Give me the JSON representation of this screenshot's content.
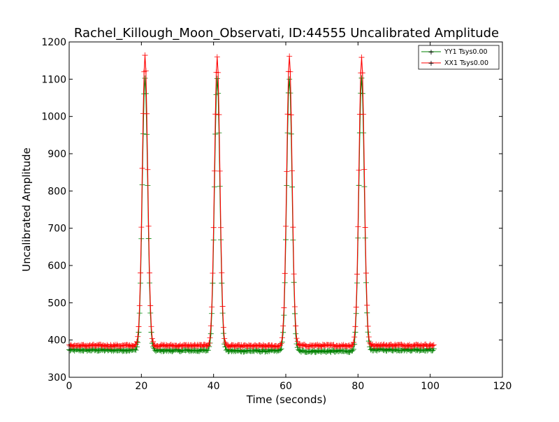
{
  "colors": {
    "background": "#ffffff",
    "axes": "#000000",
    "yy1": "#008000",
    "xx1": "#ff0000"
  },
  "chart_data": {
    "type": "line",
    "title": "Rachel_Killough_Moon_Observati, ID:44555 Uncalibrated Amplitude",
    "xlabel": "Time (seconds)",
    "ylabel": "Uncalibrated Amplitude",
    "xlim": [
      0,
      120
    ],
    "ylim": [
      300,
      1200
    ],
    "xticks": [
      0,
      20,
      40,
      60,
      80,
      100,
      120
    ],
    "yticks": [
      300,
      400,
      500,
      600,
      700,
      800,
      900,
      1000,
      1100,
      1200
    ],
    "grid": false,
    "legend_position": "top-right",
    "marker": "+",
    "x_sampling": {
      "start": 0,
      "end": 101,
      "step": 0.25
    },
    "baseline_segments": [
      {
        "x_start": 0,
        "x_end": 19,
        "xx1": 385,
        "yy1": 373
      },
      {
        "x_start": 23,
        "x_end": 39,
        "xx1": 385,
        "yy1": 372
      },
      {
        "x_start": 43,
        "x_end": 59,
        "xx1": 384,
        "yy1": 371
      },
      {
        "x_start": 63,
        "x_end": 79,
        "xx1": 385,
        "yy1": 370
      },
      {
        "x_start": 83,
        "x_end": 101,
        "xx1": 386,
        "yy1": 374
      }
    ],
    "peaks": [
      {
        "x": 21,
        "yy1": 1100,
        "xx1": 1165
      },
      {
        "x": 41,
        "yy1": 1100,
        "xx1": 1160
      },
      {
        "x": 61,
        "yy1": 1100,
        "xx1": 1160
      },
      {
        "x": 81,
        "yy1": 1100,
        "xx1": 1160
      }
    ],
    "peak_half_width_seconds": 1.2,
    "series": [
      {
        "name": "YY1 Tsys0.00",
        "color": "#008000",
        "key": "yy1"
      },
      {
        "name": "XX1 Tsys0.00",
        "color": "#ff0000",
        "key": "xx1"
      }
    ]
  }
}
